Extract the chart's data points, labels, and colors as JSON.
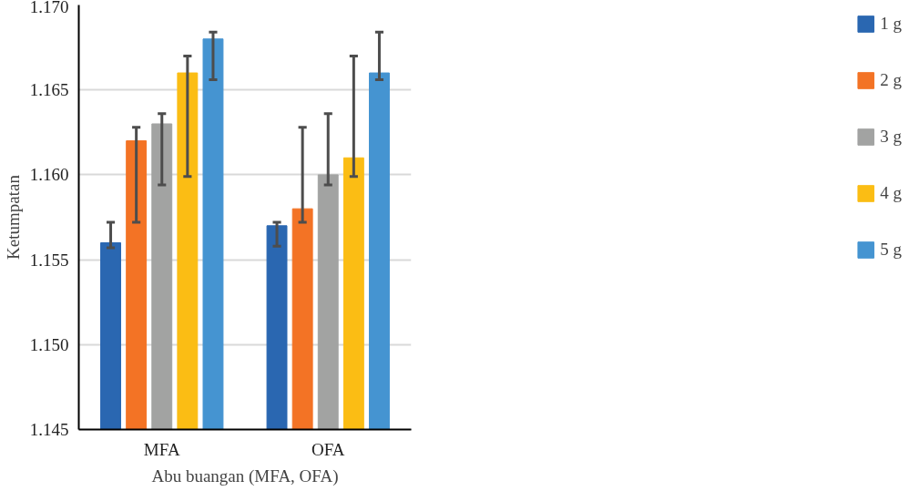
{
  "chart_data": {
    "type": "bar",
    "xlabel": "Abu buangan (MFA, OFA)",
    "ylabel": "Ketumpatan",
    "categories": [
      "MFA",
      "OFA"
    ],
    "series": [
      {
        "name": "1 g",
        "color": "#2a67b1",
        "values": [
          1.156,
          1.157
        ],
        "errors": [
          [
            1.1557,
            1.1572
          ],
          [
            1.1558,
            1.1572
          ]
        ]
      },
      {
        "name": "2 g",
        "color": "#f37325",
        "values": [
          1.162,
          1.158
        ],
        "errors": [
          [
            1.1572,
            1.1628
          ],
          [
            1.1572,
            1.1628
          ]
        ]
      },
      {
        "name": "3 g",
        "color": "#a2a3a2",
        "values": [
          1.163,
          1.16
        ],
        "errors": [
          [
            1.1594,
            1.1636
          ],
          [
            1.1594,
            1.1636
          ]
        ]
      },
      {
        "name": "4 g",
        "color": "#fbbd14",
        "values": [
          1.166,
          1.161
        ],
        "errors": [
          [
            1.1599,
            1.167
          ],
          [
            1.1599,
            1.167
          ]
        ]
      },
      {
        "name": "5 g",
        "color": "#4594d1",
        "values": [
          1.168,
          1.166
        ],
        "errors": [
          [
            1.1656,
            1.1684
          ],
          [
            1.1656,
            1.1684
          ]
        ]
      }
    ],
    "ylim": [
      1.145,
      1.17
    ],
    "yticks": [
      {
        "value": 1.145,
        "label": "1.145"
      },
      {
        "value": 1.15,
        "label": "1.150"
      },
      {
        "value": 1.155,
        "label": "1.155"
      },
      {
        "value": 1.16,
        "label": "1.160"
      },
      {
        "value": 1.165,
        "label": "1.165"
      },
      {
        "value": 1.17,
        "label": "1.170"
      }
    ],
    "grid": "y",
    "legend": "right"
  }
}
